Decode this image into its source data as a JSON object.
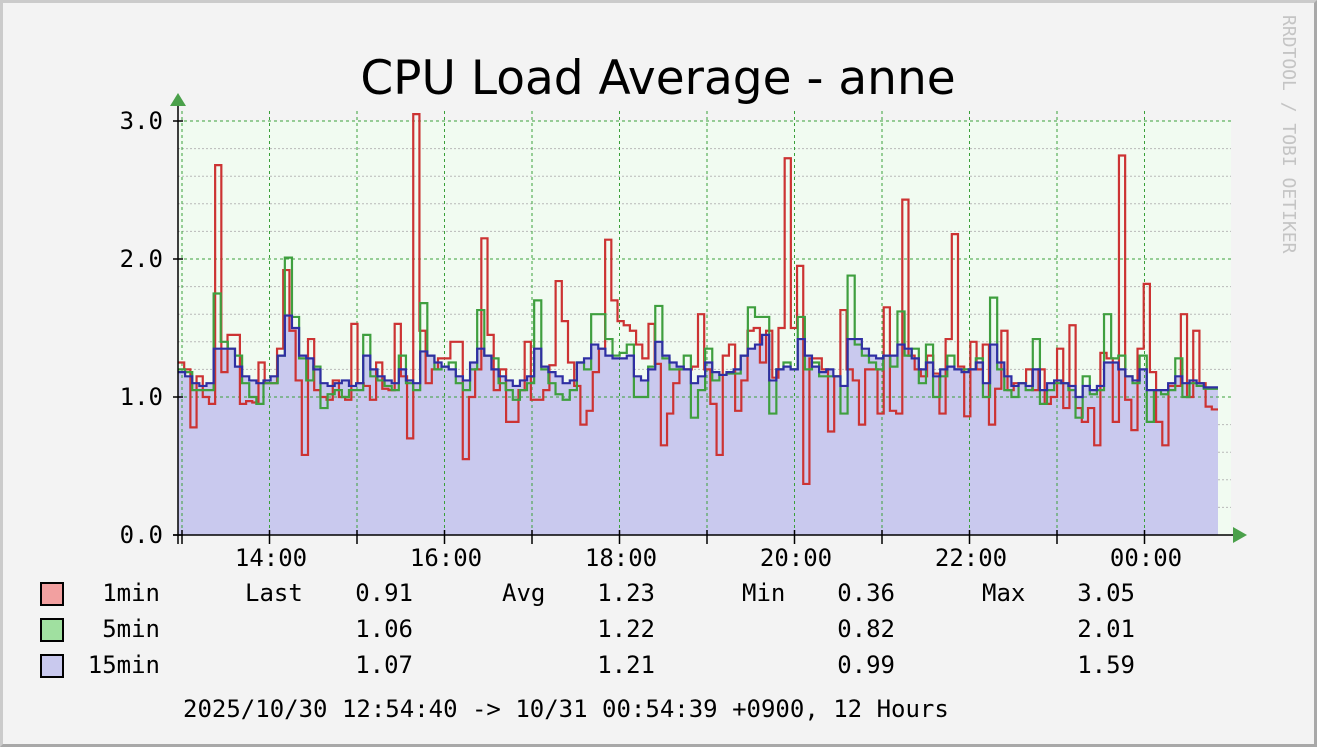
{
  "chart_data": {
    "type": "area",
    "title": "CPU Load Average - anne",
    "watermark": "RRDTOOL / TOBI OETIKER",
    "ylim": [
      0,
      3.0
    ],
    "yticks": [
      "0.0",
      "1.0",
      "2.0",
      "3.0"
    ],
    "xticks": [
      "14:00",
      "16:00",
      "18:00",
      "20:00",
      "22:00",
      "00:00"
    ],
    "time_range": "2025/10/30 12:54:40 -> 10/31 00:54:39 +0900, 12 Hours",
    "grid": true,
    "colors": {
      "background": "#f3f3f3",
      "plot_bg": "#f1fbf1",
      "grid": "#3aa03a",
      "min_grid": "#b9b9b9",
      "area": "#c9c9ee",
      "arrow": "#4aa04a",
      "axis": "#000000"
    },
    "stats_headers": {
      "last": "Last",
      "avg": "Avg",
      "min": "Min",
      "max": "Max"
    },
    "series": [
      {
        "name": "1min",
        "color": "#cc3333",
        "swatch": "#f2a0a0",
        "last": "0.91",
        "avg": "1.23",
        "min": "0.36",
        "max": "3.05",
        "values": [
          1.25,
          1.2,
          0.78,
          1.15,
          1.0,
          0.95,
          2.68,
          1.18,
          1.45,
          1.45,
          0.95,
          0.97,
          0.96,
          1.25,
          1.1,
          1.1,
          1.35,
          1.92,
          1.48,
          1.12,
          0.58,
          1.42,
          1.05,
          1.0,
          0.98,
          1.12,
          1.0,
          0.98,
          1.53,
          1.1,
          1.08,
          0.98,
          1.25,
          1.06,
          1.05,
          1.53,
          1.15,
          0.7,
          3.05,
          1.48,
          1.1,
          1.2,
          1.28,
          1.28,
          1.4,
          1.4,
          0.55,
          1.0,
          1.2,
          2.15,
          1.45,
          1.05,
          1.2,
          0.82,
          0.82,
          1.05,
          1.4,
          0.98,
          0.98,
          1.05,
          1.23,
          1.84,
          1.55,
          1.25,
          1.08,
          0.8,
          0.9,
          1.18,
          1.35,
          2.14,
          1.7,
          1.55,
          1.52,
          1.48,
          1.38,
          1.28,
          1.53,
          1.24,
          0.65,
          0.88,
          1.1,
          1.2,
          1.2,
          1.22,
          1.6,
          1.2,
          0.95,
          0.58,
          1.3,
          1.38,
          0.9,
          1.12,
          1.48,
          1.5,
          1.25,
          1.48,
          1.14,
          1.5,
          2.73,
          1.5,
          1.95,
          0.37,
          1.28,
          1.28,
          1.2,
          0.75,
          1.15,
          1.63,
          1.2,
          1.12,
          0.8,
          1.2,
          1.2,
          0.88,
          1.65,
          0.9,
          0.88,
          2.43,
          1.3,
          1.2,
          1.15,
          1.3,
          1.17,
          0.88,
          1.42,
          2.18,
          1.22,
          0.86,
          1.4,
          1.2,
          1.38,
          0.8,
          1.06,
          1.48,
          1.05,
          1.1,
          1.1,
          1.2,
          1.05,
          1.2,
          0.95,
          1.0,
          1.35,
          0.92,
          1.52,
          0.92,
          0.82,
          0.92,
          0.65,
          1.32,
          1.28,
          0.82,
          2.75,
          0.98,
          0.76,
          1.35,
          1.82,
          1.18,
          0.82,
          0.65,
          1.08,
          1.08,
          1.6,
          1.0,
          1.48,
          1.1,
          0.93,
          0.91
        ]
      },
      {
        "name": "5min",
        "color": "#3f9f3f",
        "swatch": "#a0e0a0",
        "last": "1.06",
        "avg": "1.22",
        "min": "0.82",
        "max": "2.01",
        "values": [
          1.2,
          1.18,
          1.05,
          1.05,
          1.05,
          1.75,
          1.4,
          1.35,
          1.3,
          1.1,
          1.0,
          0.95,
          1.1,
          1.1,
          1.3,
          2.01,
          1.58,
          1.28,
          1.12,
          1.22,
          0.92,
          1.02,
          1.05,
          1.0,
          1.05,
          1.05,
          1.45,
          1.15,
          1.12,
          1.08,
          1.05,
          1.3,
          1.1,
          1.05,
          1.68,
          1.3,
          1.2,
          1.22,
          1.25,
          1.1,
          1.05,
          1.2,
          1.63,
          1.3,
          1.28,
          1.1,
          1.05,
          0.98,
          1.05,
          1.1,
          1.7,
          1.2,
          1.1,
          1.02,
          0.98,
          1.05,
          1.25,
          1.2,
          1.6,
          1.6,
          1.42,
          1.3,
          1.32,
          1.38,
          1.0,
          1.0,
          1.22,
          1.66,
          1.28,
          1.2,
          1.2,
          1.3,
          0.85,
          1.05,
          1.35,
          1.12,
          1.16,
          1.17,
          1.17,
          1.3,
          1.65,
          1.58,
          1.58,
          0.88,
          1.2,
          1.25,
          1.2,
          1.58,
          1.2,
          1.25,
          1.15,
          1.15,
          1.15,
          0.88,
          1.88,
          1.38,
          1.3,
          1.25,
          1.2,
          1.3,
          1.22,
          1.62,
          1.3,
          1.35,
          1.1,
          1.38,
          1.0,
          1.15,
          1.3,
          1.2,
          1.2,
          1.2,
          1.28,
          1.0,
          1.72,
          1.2,
          1.05,
          1.0,
          1.1,
          1.05,
          1.42,
          0.95,
          1.05,
          1.1,
          1.1,
          1.05,
          0.85,
          1.15,
          1.02,
          1.05,
          1.6,
          1.28,
          1.3,
          1.15,
          1.1,
          1.3,
          0.82,
          1.05,
          1.02,
          1.05,
          1.28,
          1.0,
          1.1,
          1.08,
          1.06,
          1.06
        ]
      },
      {
        "name": "15min",
        "color": "#2f2fa3",
        "swatch": "#c9c9ee",
        "last": "1.07",
        "avg": "1.21",
        "min": "0.99",
        "max": "1.59",
        "values": [
          1.18,
          1.15,
          1.1,
          1.08,
          1.1,
          1.35,
          1.35,
          1.35,
          1.22,
          1.15,
          1.12,
          1.1,
          1.12,
          1.15,
          1.3,
          1.59,
          1.5,
          1.3,
          1.28,
          1.2,
          1.1,
          1.08,
          1.1,
          1.12,
          1.08,
          1.1,
          1.3,
          1.2,
          1.15,
          1.12,
          1.1,
          1.2,
          1.12,
          1.1,
          1.33,
          1.3,
          1.25,
          1.22,
          1.2,
          1.15,
          1.12,
          1.25,
          1.35,
          1.3,
          1.2,
          1.15,
          1.12,
          1.08,
          1.12,
          1.15,
          1.35,
          1.22,
          1.18,
          1.15,
          1.1,
          1.12,
          1.25,
          1.28,
          1.38,
          1.35,
          1.3,
          1.28,
          1.28,
          1.3,
          1.15,
          1.12,
          1.2,
          1.4,
          1.3,
          1.25,
          1.22,
          1.2,
          1.1,
          1.15,
          1.25,
          1.18,
          1.16,
          1.18,
          1.2,
          1.3,
          1.35,
          1.38,
          1.45,
          1.12,
          1.2,
          1.22,
          1.2,
          1.42,
          1.3,
          1.22,
          1.18,
          1.2,
          1.15,
          1.08,
          1.42,
          1.42,
          1.35,
          1.3,
          1.28,
          1.3,
          1.3,
          1.38,
          1.35,
          1.28,
          1.2,
          1.25,
          1.15,
          1.2,
          1.22,
          1.2,
          1.18,
          1.2,
          1.25,
          1.1,
          1.38,
          1.25,
          1.15,
          1.08,
          1.1,
          1.08,
          1.2,
          1.05,
          1.1,
          1.12,
          1.1,
          1.08,
          1.0,
          1.08,
          1.05,
          1.08,
          1.25,
          1.25,
          1.2,
          1.15,
          1.12,
          1.2,
          1.05,
          1.05,
          1.05,
          1.1,
          1.15,
          1.1,
          1.12,
          1.1,
          1.07,
          1.07
        ]
      }
    ]
  }
}
